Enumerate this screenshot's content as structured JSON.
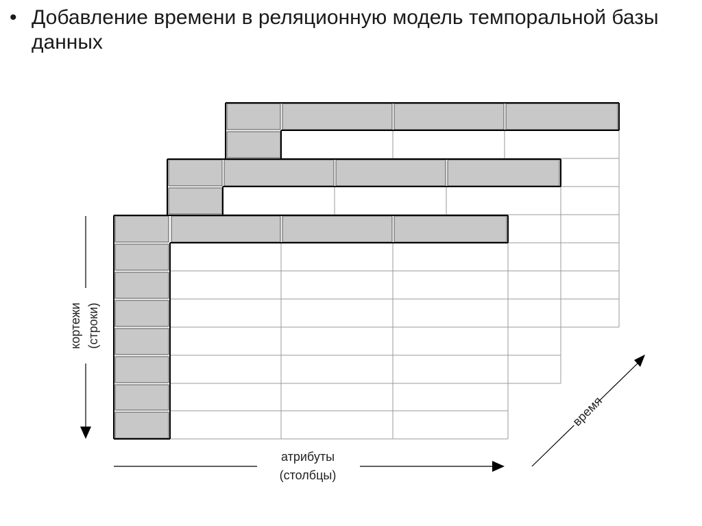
{
  "slide": {
    "bullet": "•",
    "title": "Добавление времени в реляционную модель темпоральной базы данных"
  },
  "diagram": {
    "rows_axis": {
      "line1": "кортежи",
      "line2": "(строки)"
    },
    "columns_axis": {
      "line1": "атрибуты",
      "line2": "(столбцы)"
    },
    "time_axis": {
      "label": "время"
    },
    "colors": {
      "header_fill": "#c8c8c8",
      "grid_line": "#999999",
      "frame": "#000000"
    }
  }
}
